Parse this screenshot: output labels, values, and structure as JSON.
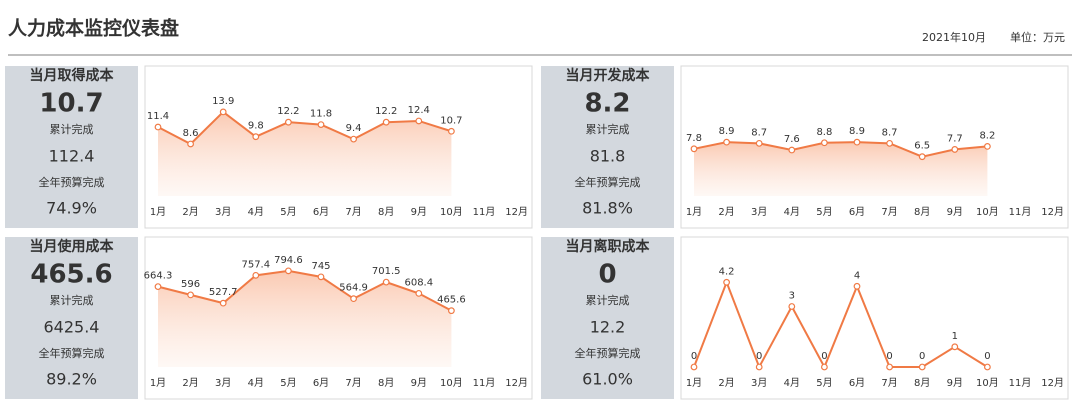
{
  "header": {
    "title": "人力成本监控仪表盘",
    "date": "2021年10月",
    "unit": "单位：万元"
  },
  "kpis": [
    {
      "title": "当月取得成本",
      "value": "10.7",
      "cumulative_label": "累计完成",
      "cumulative": "112.4",
      "budget_label": "全年预算完成",
      "budget": "74.9%"
    },
    {
      "title": "当月开发成本",
      "value": "8.2",
      "cumulative_label": "累计完成",
      "cumulative": "81.8",
      "budget_label": "全年预算完成",
      "budget": "81.8%"
    },
    {
      "title": "当月使用成本",
      "value": "465.6",
      "cumulative_label": "累计完成",
      "cumulative": "6425.4",
      "budget_label": "全年预算完成",
      "budget": "89.2%"
    },
    {
      "title": "当月离职成本",
      "value": "0",
      "cumulative_label": "累计完成",
      "cumulative": "12.2",
      "budget_label": "全年预算完成",
      "budget": "61.0%"
    }
  ],
  "chart_data": [
    {
      "type": "line",
      "area": true,
      "color": "#f07a45",
      "ylim": [
        0,
        20
      ],
      "categories": [
        "1月",
        "2月",
        "3月",
        "4月",
        "5月",
        "6月",
        "7月",
        "8月",
        "9月",
        "10月",
        "11月",
        "12月"
      ],
      "values": [
        11.4,
        8.6,
        13.9,
        9.8,
        12.2,
        11.8,
        9.4,
        12.2,
        12.4,
        10.7,
        null,
        null
      ]
    },
    {
      "type": "line",
      "area": true,
      "color": "#f07a45",
      "ylim": [
        0,
        20
      ],
      "categories": [
        "1月",
        "2月",
        "3月",
        "4月",
        "5月",
        "6月",
        "7月",
        "8月",
        "9月",
        "10月",
        "11月",
        "12月"
      ],
      "values": [
        7.8,
        8.9,
        8.7,
        7.6,
        8.8,
        8.9,
        8.7,
        6.5,
        7.7,
        8.2,
        null,
        null
      ]
    },
    {
      "type": "line",
      "area": true,
      "color": "#f07a45",
      "ylim": [
        0,
        1000
      ],
      "categories": [
        "1月",
        "2月",
        "3月",
        "4月",
        "5月",
        "6月",
        "7月",
        "8月",
        "9月",
        "10月",
        "11月",
        "12月"
      ],
      "values": [
        664.3,
        596,
        527.7,
        757.4,
        794.6,
        745,
        564.9,
        701.5,
        608.4,
        465.6,
        null,
        null
      ]
    },
    {
      "type": "line",
      "area": false,
      "color": "#f07a45",
      "ylim": [
        0,
        6
      ],
      "categories": [
        "1月",
        "2月",
        "3月",
        "4月",
        "5月",
        "6月",
        "7月",
        "8月",
        "9月",
        "10月",
        "11月",
        "12月"
      ],
      "values": [
        0,
        4.2,
        0,
        3,
        0,
        4,
        0,
        0,
        1,
        0,
        null,
        null
      ]
    }
  ]
}
